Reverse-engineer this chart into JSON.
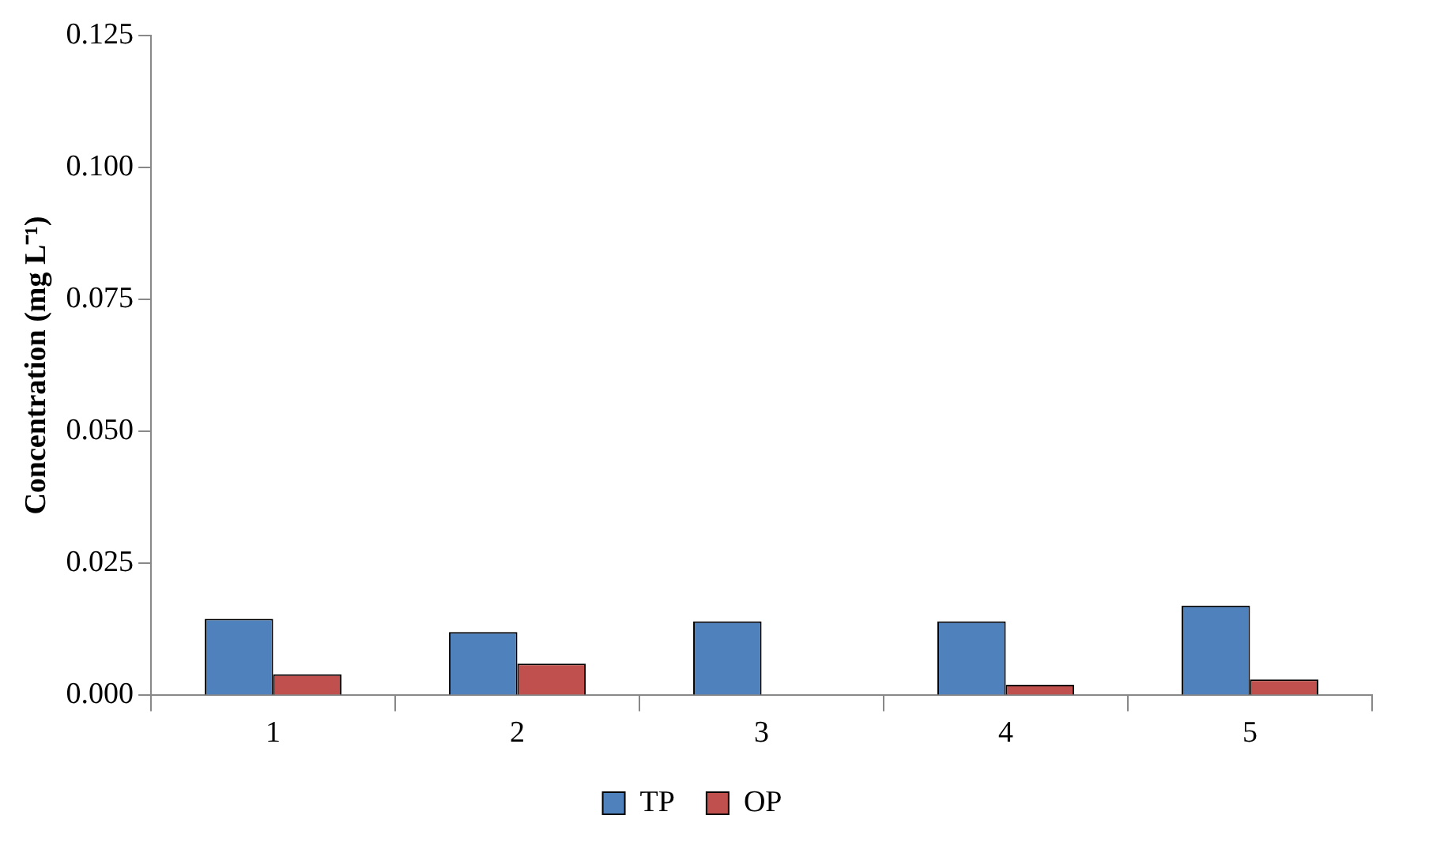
{
  "chart_data": {
    "type": "bar",
    "ylabel": "Concentration (mg L⁻¹)",
    "categories": [
      "1",
      "2",
      "3",
      "4",
      "5"
    ],
    "series": [
      {
        "name": "TP",
        "color": "#4f81bd",
        "values": [
          0.0145,
          0.012,
          0.014,
          0.014,
          0.017
        ]
      },
      {
        "name": "OP",
        "color": "#c0504d",
        "values": [
          0.004,
          0.006,
          0,
          0.002,
          0.003
        ]
      }
    ],
    "ylim": [
      0,
      0.125
    ],
    "yticks": [
      {
        "value": 0,
        "label": "0.000"
      },
      {
        "value": 0.025,
        "label": "0.025"
      },
      {
        "value": 0.05,
        "label": "0.050"
      },
      {
        "value": 0.075,
        "label": "0.075"
      },
      {
        "value": 0.1,
        "label": "0.100"
      },
      {
        "value": 0.125,
        "label": "0.125"
      }
    ],
    "grid": false,
    "legend": "bottom"
  }
}
